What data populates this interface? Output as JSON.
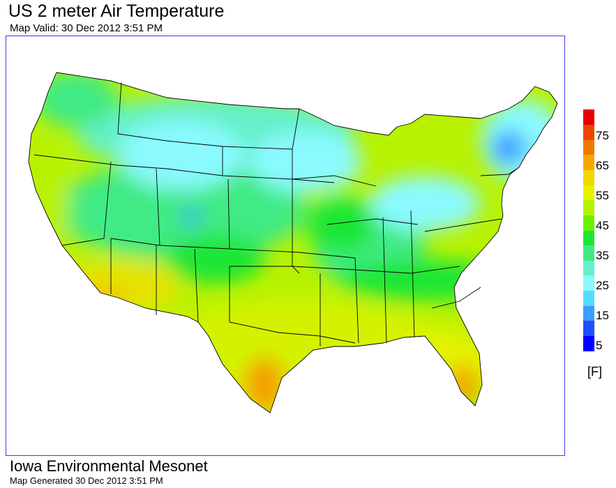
{
  "header": {
    "title": "US 2 meter Air Temperature",
    "subtitle": "Map Valid: 30 Dec 2012 3:51 PM"
  },
  "legend": {
    "unit": "[F]",
    "ticks": [
      "75",
      "65",
      "55",
      "45",
      "35",
      "25",
      "15",
      "5"
    ],
    "colors": [
      "#0000ff",
      "#1e50ff",
      "#3a9eff",
      "#55dbff",
      "#8afaff",
      "#64f0c8",
      "#3fea84",
      "#1ee636",
      "#6ef000",
      "#b8f200",
      "#e4f200",
      "#f0d800",
      "#f4a800",
      "#f07800",
      "#ee4400",
      "#e80000"
    ]
  },
  "footer": {
    "org": "Iowa Environmental Mesonet",
    "generated": "Map Generated 30 Dec 2012 3:51 PM"
  }
}
